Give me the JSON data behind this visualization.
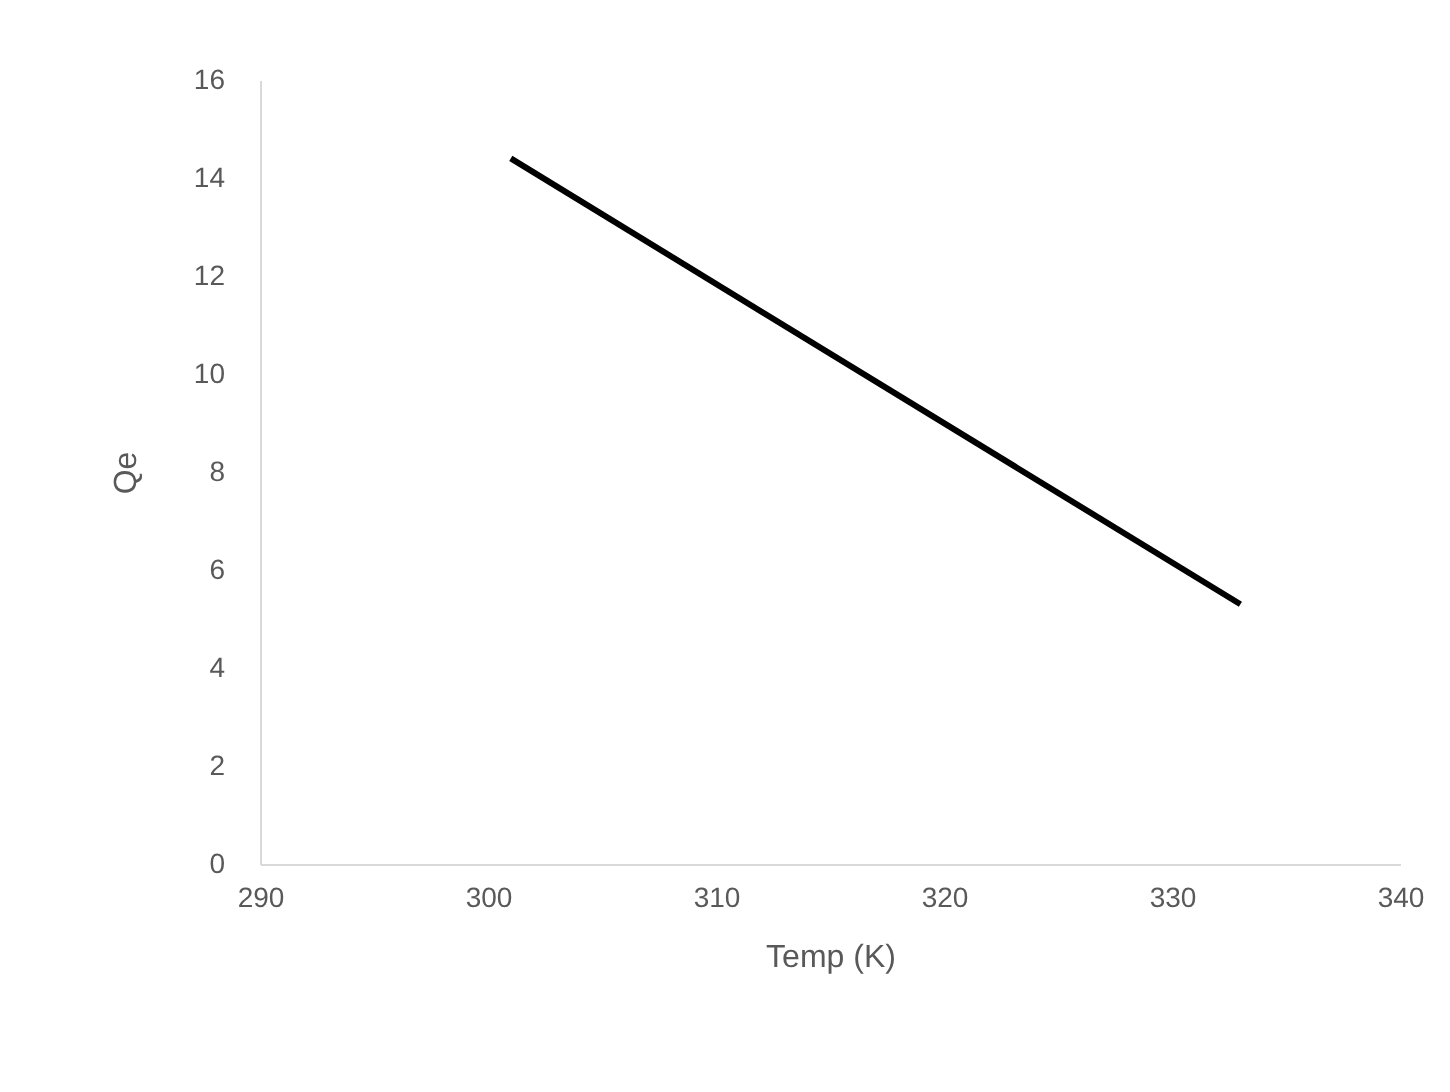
{
  "chart_data": {
    "type": "line",
    "xlabel": "Temp (K)",
    "ylabel": "Qe",
    "x": [
      301,
      333
    ],
    "series": [
      {
        "color": "#000000",
        "values": [
          14.4,
          5.3
        ]
      }
    ],
    "xlim": [
      290,
      340
    ],
    "xticks": [
      290,
      300,
      310,
      320,
      330,
      340
    ],
    "ylim": [
      0,
      16
    ],
    "yticks": [
      0,
      2,
      4,
      6,
      8,
      10,
      12,
      14,
      16
    ],
    "grid": false,
    "legend": false,
    "marker": "none",
    "line_style": "solid"
  }
}
